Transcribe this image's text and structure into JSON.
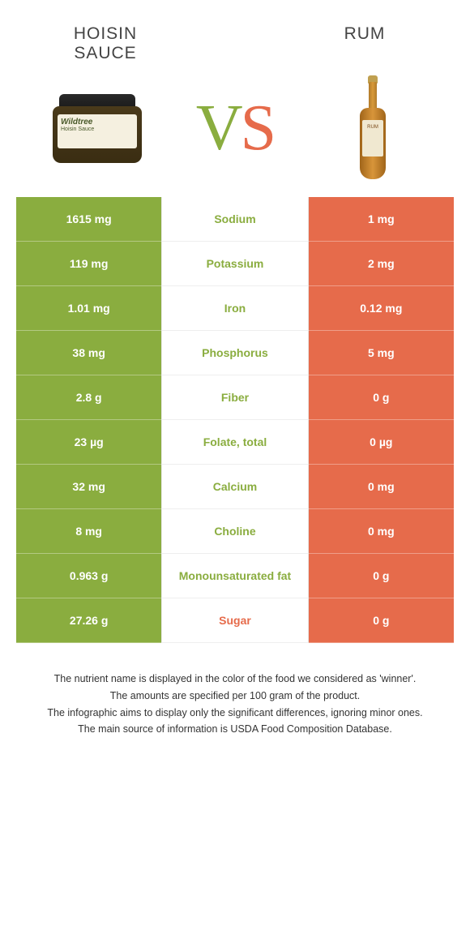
{
  "header": {
    "left_title": "Hoisin sauce",
    "right_title": "Rum",
    "vs_v": "V",
    "vs_s": "S",
    "jar_brand": "Wildtree",
    "jar_sub": "Hoisin Sauce",
    "bottle_label": "RUM"
  },
  "colors": {
    "left": "#8aad3f",
    "right": "#e66b4b",
    "bg": "#ffffff"
  },
  "table": {
    "rows": [
      {
        "left": "1615 mg",
        "label": "Sodium",
        "right": "1 mg",
        "winner": "left"
      },
      {
        "left": "119 mg",
        "label": "Potassium",
        "right": "2 mg",
        "winner": "left"
      },
      {
        "left": "1.01 mg",
        "label": "Iron",
        "right": "0.12 mg",
        "winner": "left"
      },
      {
        "left": "38 mg",
        "label": "Phosphorus",
        "right": "5 mg",
        "winner": "left"
      },
      {
        "left": "2.8 g",
        "label": "Fiber",
        "right": "0 g",
        "winner": "left"
      },
      {
        "left": "23 µg",
        "label": "Folate, total",
        "right": "0 µg",
        "winner": "left"
      },
      {
        "left": "32 mg",
        "label": "Calcium",
        "right": "0 mg",
        "winner": "left"
      },
      {
        "left": "8 mg",
        "label": "Choline",
        "right": "0 mg",
        "winner": "left"
      },
      {
        "left": "0.963 g",
        "label": "Monounsaturated fat",
        "right": "0 g",
        "winner": "left"
      },
      {
        "left": "27.26 g",
        "label": "Sugar",
        "right": "0 g",
        "winner": "right"
      }
    ]
  },
  "footnotes": {
    "l1": "The nutrient name is displayed in the color of the food we considered as 'winner'.",
    "l2": "The amounts are specified per 100 gram of the product.",
    "l3": "The infographic aims to display only the significant differences, ignoring minor ones.",
    "l4": "The main source of information is USDA Food Composition Database."
  }
}
